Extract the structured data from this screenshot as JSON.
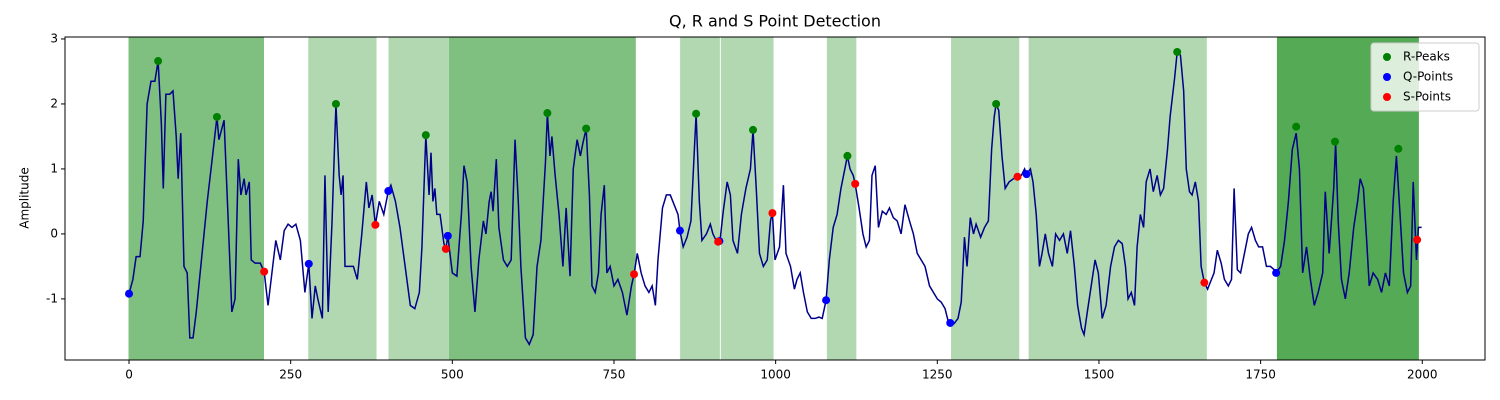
{
  "chart_data": {
    "type": "line",
    "title": "Q, R and S Point Detection",
    "y_label": "Amplitude",
    "xlim": [
      -99,
      2097
    ],
    "ylim": [
      -1.94,
      3.03
    ],
    "xticks": [
      0,
      250,
      500,
      750,
      1000,
      1250,
      1500,
      1750,
      2000
    ],
    "yticks": [
      -1,
      0,
      1,
      2,
      3
    ],
    "grid": false,
    "legend": "upper right",
    "spans": [
      {
        "x": [
          0,
          208
        ],
        "color": "#7fbf7f"
      },
      {
        "x": [
          278,
          382
        ],
        "color": "#b2d8b2"
      },
      {
        "x": [
          402,
          493
        ],
        "color": "#b2d8b2"
      },
      {
        "x": [
          495,
          783
        ],
        "color": "#7fbf7f"
      },
      {
        "x": [
          853,
          913
        ],
        "color": "#b2d8b2"
      },
      {
        "x": [
          916,
          996
        ],
        "color": "#b2d8b2"
      },
      {
        "x": [
          1080,
          1124
        ],
        "color": "#b2d8b2"
      },
      {
        "x": [
          1272,
          1376
        ],
        "color": "#b2d8b2"
      },
      {
        "x": [
          1392,
          1666
        ],
        "color": "#b2d8b2"
      },
      {
        "x": [
          1776,
          1994
        ],
        "color": "#55aa55"
      }
    ],
    "line": {
      "color": "#00008b",
      "x": [
        0,
        6,
        11,
        17,
        22,
        28,
        34,
        40,
        45,
        50,
        53,
        57,
        63,
        68,
        73,
        76,
        80,
        85,
        90,
        94,
        99,
        104,
        108,
        114,
        121,
        128,
        136,
        139,
        147,
        153,
        159,
        164,
        169,
        173,
        178,
        181,
        186,
        189,
        195,
        203,
        209,
        215,
        221,
        227,
        234,
        240,
        246,
        252,
        258,
        265,
        272,
        278,
        283,
        288,
        292,
        299,
        303,
        308,
        314,
        320,
        325,
        328,
        331,
        334,
        340,
        347,
        353,
        360,
        367,
        371,
        376,
        381,
        387,
        394,
        401,
        405,
        412,
        419,
        427,
        435,
        442,
        449,
        453,
        459,
        464,
        467,
        470,
        473,
        476,
        481,
        487,
        490,
        493,
        500,
        507,
        514,
        518,
        523,
        529,
        535,
        541,
        548,
        552,
        557,
        560,
        563,
        568,
        572,
        579,
        585,
        591,
        597,
        602,
        606,
        613,
        619,
        625,
        631,
        637,
        644,
        647,
        651,
        654,
        659,
        665,
        671,
        676,
        682,
        687,
        693,
        698,
        702,
        707,
        712,
        716,
        721,
        726,
        730,
        735,
        739,
        744,
        750,
        756,
        763,
        770,
        777,
        781,
        786,
        792,
        798,
        804,
        809,
        814,
        818,
        825,
        831,
        837,
        843,
        849,
        852,
        857,
        863,
        869,
        877,
        882,
        886,
        893,
        899,
        903,
        908,
        911,
        914,
        919,
        925,
        930,
        934,
        941,
        947,
        954,
        961,
        965,
        970,
        975,
        981,
        987,
        992,
        995,
        999,
        1006,
        1012,
        1016,
        1023,
        1029,
        1033,
        1038,
        1043,
        1049,
        1055,
        1061,
        1067,
        1072,
        1078,
        1083,
        1089,
        1095,
        1101,
        1108,
        1111,
        1115,
        1120,
        1123,
        1129,
        1135,
        1140,
        1145,
        1149,
        1154,
        1159,
        1165,
        1171,
        1176,
        1182,
        1188,
        1194,
        1200,
        1207,
        1213,
        1219,
        1225,
        1231,
        1238,
        1244,
        1250,
        1256,
        1262,
        1267,
        1270,
        1276,
        1282,
        1287,
        1292,
        1296,
        1301,
        1306,
        1310,
        1317,
        1323,
        1329,
        1334,
        1338,
        1341,
        1345,
        1350,
        1355,
        1361,
        1368,
        1374,
        1380,
        1385,
        1388,
        1394,
        1398,
        1403,
        1408,
        1412,
        1417,
        1422,
        1428,
        1433,
        1439,
        1445,
        1451,
        1456,
        1462,
        1467,
        1473,
        1477,
        1482,
        1488,
        1494,
        1499,
        1505,
        1511,
        1518,
        1524,
        1530,
        1536,
        1541,
        1545,
        1550,
        1555,
        1559,
        1564,
        1569,
        1573,
        1579,
        1584,
        1590,
        1595,
        1600,
        1606,
        1610,
        1617,
        1621,
        1626,
        1631,
        1635,
        1640,
        1644,
        1649,
        1654,
        1658,
        1663,
        1668,
        1674,
        1678,
        1683,
        1689,
        1694,
        1700,
        1705,
        1709,
        1714,
        1719,
        1725,
        1731,
        1736,
        1742,
        1747,
        1753,
        1759,
        1765,
        1771,
        1774,
        1781,
        1787,
        1793,
        1799,
        1805,
        1810,
        1815,
        1821,
        1827,
        1833,
        1839,
        1846,
        1850,
        1856,
        1863,
        1866,
        1870,
        1875,
        1881,
        1887,
        1894,
        1900,
        1904,
        1909,
        1914,
        1918,
        1924,
        1931,
        1937,
        1943,
        1949,
        1955,
        1960,
        1965,
        1971,
        1977,
        1982,
        1986,
        1991,
        1994,
        1999
      ],
      "values": [
        -0.92,
        -0.7,
        -0.35,
        -0.35,
        0.2,
        2.0,
        2.35,
        2.35,
        2.66,
        1.7,
        0.7,
        2.15,
        2.15,
        2.2,
        1.5,
        0.85,
        1.55,
        -0.5,
        -0.6,
        -1.6,
        -1.6,
        -1.2,
        -0.8,
        -0.2,
        0.5,
        1.1,
        1.8,
        1.45,
        1.75,
        0.3,
        -1.2,
        -1.0,
        1.15,
        0.6,
        0.85,
        0.6,
        0.8,
        -0.4,
        -0.45,
        -0.45,
        -0.58,
        -1.1,
        -0.6,
        -0.1,
        -0.4,
        0.05,
        0.15,
        0.1,
        0.15,
        -0.1,
        -0.9,
        -0.46,
        -1.3,
        -0.8,
        -1.0,
        -1.3,
        0.9,
        -1.2,
        0.2,
        2.0,
        0.9,
        0.6,
        0.9,
        -0.5,
        -0.5,
        -0.5,
        -0.7,
        0.0,
        0.8,
        0.4,
        0.6,
        0.14,
        0.5,
        0.3,
        0.66,
        0.75,
        0.5,
        0.1,
        -0.5,
        -1.1,
        -1.15,
        -0.9,
        -0.2,
        1.52,
        0.6,
        1.25,
        0.5,
        0.7,
        0.3,
        0.3,
        -0.15,
        -0.23,
        -0.03,
        -0.6,
        -0.65,
        0.3,
        1.05,
        0.8,
        -0.5,
        -1.2,
        -0.4,
        0.2,
        0.0,
        0.5,
        0.65,
        0.35,
        1.15,
        0.1,
        -0.4,
        -0.5,
        -0.4,
        1.45,
        0.5,
        -0.5,
        -1.6,
        -1.7,
        -1.55,
        -0.5,
        -0.1,
        1.1,
        1.86,
        1.2,
        1.5,
        0.9,
        0.3,
        -0.5,
        0.4,
        -0.65,
        1.0,
        1.45,
        1.2,
        1.4,
        1.62,
        0.6,
        -0.8,
        -0.9,
        -0.6,
        0.3,
        0.75,
        -0.6,
        -0.5,
        -0.8,
        -0.7,
        -0.9,
        -1.25,
        -0.8,
        -0.62,
        -0.3,
        -0.6,
        -0.8,
        -0.9,
        -0.8,
        -1.1,
        -0.4,
        0.4,
        0.6,
        0.6,
        0.45,
        0.3,
        0.05,
        -0.2,
        -0.05,
        0.2,
        1.85,
        0.5,
        -0.1,
        0.0,
        0.15,
        0.0,
        -0.1,
        -0.12,
        -0.1,
        0.35,
        0.8,
        0.6,
        -0.1,
        -0.3,
        0.3,
        0.7,
        1.0,
        1.6,
        0.7,
        -0.3,
        -0.5,
        -0.4,
        0.2,
        0.32,
        -0.4,
        -0.2,
        0.75,
        -0.3,
        -0.5,
        -0.85,
        -0.7,
        -0.6,
        -0.9,
        -1.2,
        -1.3,
        -1.3,
        -1.28,
        -1.3,
        -1.02,
        -0.4,
        0.1,
        0.3,
        0.7,
        1.05,
        1.2,
        1.0,
        0.9,
        0.77,
        0.4,
        0.0,
        -0.2,
        -0.1,
        0.9,
        1.05,
        0.1,
        0.35,
        0.3,
        0.4,
        0.25,
        0.2,
        0.0,
        0.45,
        0.2,
        0.0,
        -0.3,
        -0.4,
        -0.5,
        -0.8,
        -0.9,
        -1.0,
        -1.05,
        -1.15,
        -1.35,
        -1.37,
        -1.38,
        -1.3,
        -1.05,
        -0.05,
        -0.5,
        0.25,
        0.0,
        0.15,
        -0.05,
        0.1,
        0.2,
        1.3,
        1.8,
        2.0,
        1.9,
        1.2,
        0.7,
        0.8,
        0.85,
        0.88,
        0.9,
        1.0,
        0.92,
        1.0,
        0.8,
        0.3,
        -0.5,
        -0.3,
        0.0,
        -0.3,
        -0.5,
        0.0,
        -0.1,
        0.0,
        -0.3,
        0.05,
        -0.5,
        -1.1,
        -1.45,
        -1.55,
        -1.2,
        -0.8,
        -0.4,
        -0.6,
        -1.3,
        -1.1,
        -0.5,
        -0.2,
        -0.1,
        -0.15,
        -0.5,
        -1.0,
        -0.9,
        -1.1,
        -0.2,
        0.3,
        0.1,
        0.8,
        1.0,
        0.65,
        0.9,
        0.6,
        0.7,
        1.3,
        1.8,
        2.4,
        2.8,
        2.75,
        2.2,
        1.0,
        0.65,
        0.6,
        0.8,
        0.5,
        -0.5,
        -0.75,
        -0.85,
        -0.7,
        -0.6,
        -0.25,
        -0.45,
        -0.7,
        -0.8,
        -0.7,
        0.7,
        -0.55,
        -0.6,
        -0.3,
        0.0,
        0.1,
        -0.1,
        -0.2,
        -0.2,
        -0.5,
        -0.5,
        -0.55,
        -0.6,
        -0.5,
        -0.1,
        0.5,
        1.3,
        1.55,
        1.0,
        -0.6,
        -0.2,
        -0.7,
        -1.1,
        -0.9,
        -0.6,
        0.65,
        -0.3,
        0.7,
        1.4,
        0.2,
        -0.7,
        -1.0,
        -0.6,
        0.1,
        0.5,
        0.85,
        0.7,
        -0.1,
        -0.8,
        -0.6,
        -0.7,
        -0.9,
        -0.6,
        -0.8,
        0.5,
        1.2,
        0.4,
        -0.6,
        -0.9,
        -0.8,
        0.8,
        -0.4,
        0.1,
        0.1
      ]
    },
    "series": [
      {
        "name": "R-Peaks",
        "color": "#008000",
        "x": [
          45,
          136,
          320,
          459,
          647,
          707,
          877,
          965,
          1111,
          1341,
          1621,
          1805,
          1865,
          1963
        ],
        "values": [
          2.66,
          1.8,
          2.0,
          1.52,
          1.86,
          1.62,
          1.85,
          1.6,
          1.2,
          2.0,
          2.8,
          1.65,
          1.42,
          1.31
        ]
      },
      {
        "name": "Q-Points",
        "color": "#0000ff",
        "x": [
          0,
          278,
          401,
          493,
          852,
          913,
          1078,
          1270,
          1388,
          1774
        ],
        "values": [
          -0.92,
          -0.46,
          0.66,
          -0.03,
          0.05,
          -0.11,
          -1.02,
          -1.37,
          0.92,
          -0.6
        ]
      },
      {
        "name": "S-Points",
        "color": "#ff0000",
        "x": [
          209,
          381,
          490,
          781,
          911,
          995,
          1123,
          1374,
          1663,
          1992
        ],
        "values": [
          -0.58,
          0.14,
          -0.23,
          -0.62,
          -0.12,
          0.32,
          0.77,
          0.88,
          -0.75,
          -0.09
        ]
      }
    ]
  }
}
